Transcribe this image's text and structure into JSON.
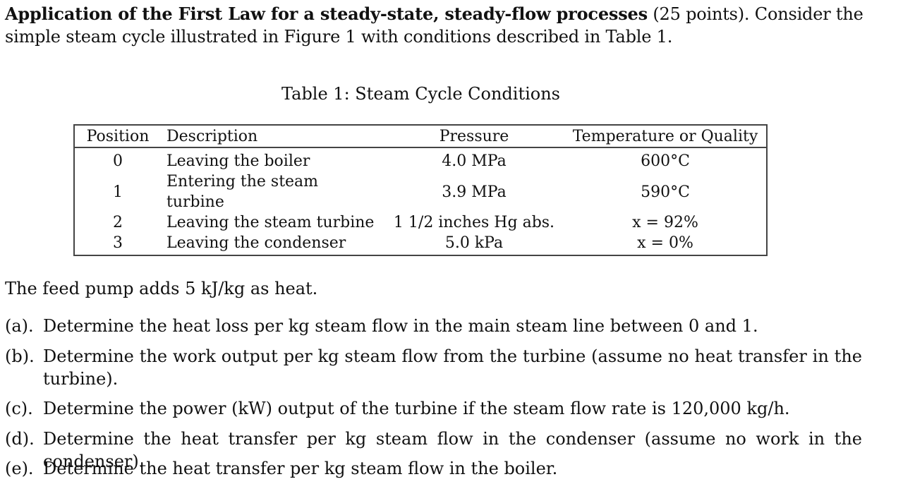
{
  "intro": {
    "heading_bold": "Application of the First Law for a steady-state, steady-flow processes",
    "heading_rest": " (25 points). Consider the simple steam cycle illustrated in Figure 1 with conditions described in Table 1."
  },
  "table": {
    "caption": "Table 1: Steam Cycle Conditions",
    "headers": [
      "Position",
      "Description",
      "Pressure",
      "Temperature or Quality"
    ],
    "rows": [
      [
        "0",
        "Leaving the boiler",
        "4.0 MPa",
        "600°C"
      ],
      [
        "1",
        "Entering the steam turbine",
        "3.9 MPa",
        "590°C"
      ],
      [
        "2",
        "Leaving the steam turbine",
        "1 1/2 inches Hg abs.",
        "x = 92%"
      ],
      [
        "3",
        "Leaving the condenser",
        "5.0 kPa",
        "x = 0%"
      ]
    ]
  },
  "feed_pump": "The feed pump adds 5 kJ/kg as heat.",
  "questions": [
    {
      "label": "(a).",
      "text": "Determine the heat loss per kg steam flow in the main steam line between 0 and 1."
    },
    {
      "label": "(b).",
      "text": "Determine the work output per kg steam flow from the turbine (assume no heat transfer in the turbine)."
    },
    {
      "label": "(c).",
      "text": "Determine the power (kW) output of the turbine if the steam flow rate is 120,000 kg/h."
    },
    {
      "label": "(d).",
      "text": "Determine the heat transfer per kg steam flow in the condenser (assume no work in the condenser)."
    },
    {
      "label": "(e).",
      "text": "Determine the heat transfer per kg steam flow in the boiler."
    }
  ]
}
